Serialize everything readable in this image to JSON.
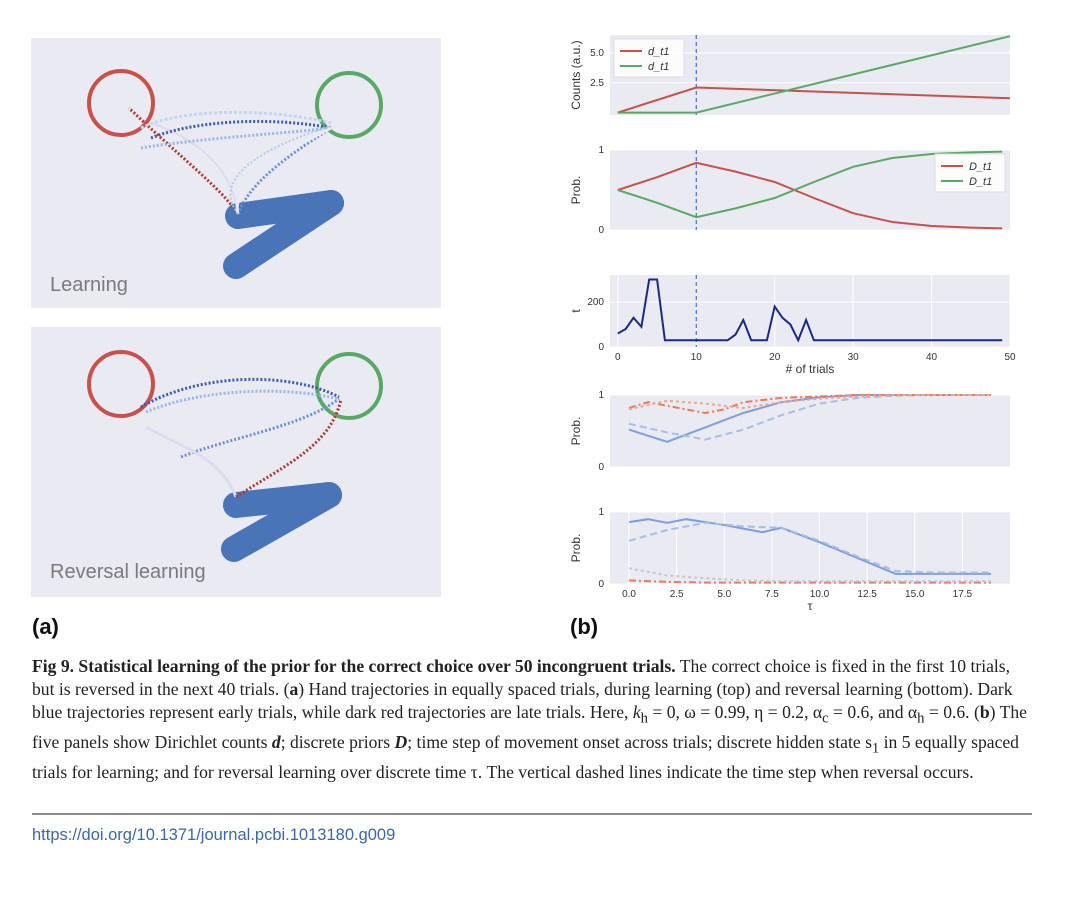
{
  "panel_a": {
    "label": "(a)",
    "top_scene_label": "Learning",
    "bottom_scene_label": "Reversal learning"
  },
  "panel_b": {
    "label": "(b)"
  },
  "colors": {
    "red": "#c9504b",
    "green": "#5aa865",
    "blue": "#4a74b8",
    "dark_blue": "#1a2a80",
    "orange": "#ea7a5c",
    "light_blue": "#7f9fd8",
    "dashed_line": "#3f6fd0",
    "panel_bg": "#eaeaf2"
  },
  "chart_data": [
    {
      "type": "line",
      "panel": "Dirichlet counts",
      "ylabel": "Counts (a.u.)",
      "yticks": [
        "2.5",
        "5.0"
      ],
      "xlim": [
        -1,
        50
      ],
      "ylim": [
        -0.2,
        6.5
      ],
      "legend": [
        "d_t1",
        "d_t1"
      ],
      "legend_position": "top-left",
      "series": [
        {
          "name": "d_t1 (red)",
          "color": "#c9504b",
          "x": [
            0,
            10,
            50
          ],
          "y": [
            0,
            2.1,
            1.2
          ]
        },
        {
          "name": "d_t1 (green)",
          "color": "#5aa865",
          "x": [
            0,
            10,
            50
          ],
          "y": [
            0,
            0,
            6.4
          ]
        }
      ],
      "vline": 10
    },
    {
      "type": "line",
      "panel": "Discrete priors",
      "ylabel": "Prob.",
      "yticks": [
        "0",
        "1"
      ],
      "xlim": [
        -1,
        50
      ],
      "ylim": [
        0,
        1
      ],
      "legend": [
        "D_t1",
        "D_t1"
      ],
      "legend_position": "top-right",
      "series": [
        {
          "name": "D_t1 (red)",
          "color": "#c9504b",
          "x": [
            0,
            5,
            10,
            15,
            20,
            25,
            30,
            35,
            40,
            45,
            49
          ],
          "y": [
            0.5,
            0.66,
            0.84,
            0.73,
            0.6,
            0.4,
            0.21,
            0.1,
            0.05,
            0.03,
            0.02
          ]
        },
        {
          "name": "D_t1 (green)",
          "color": "#5aa865",
          "x": [
            0,
            5,
            10,
            15,
            20,
            25,
            30,
            35,
            40,
            45,
            49
          ],
          "y": [
            0.5,
            0.34,
            0.16,
            0.27,
            0.4,
            0.6,
            0.79,
            0.9,
            0.95,
            0.97,
            0.98
          ]
        }
      ],
      "vline": 10
    },
    {
      "type": "line",
      "panel": "Time step of movement onset",
      "ylabel": "t",
      "xlabel": "# of trials",
      "yticks": [
        "0",
        "200"
      ],
      "xticks": [
        "0",
        "10",
        "20",
        "30",
        "40",
        "50"
      ],
      "xlim": [
        -1,
        50
      ],
      "ylim": [
        0,
        320
      ],
      "series": [
        {
          "name": "onset",
          "color": "#1a2a80",
          "x": [
            0,
            1,
            2,
            3,
            4,
            5,
            6,
            7,
            14,
            15,
            16,
            17,
            18,
            19,
            20,
            21,
            22,
            23,
            24,
            25,
            26,
            49
          ],
          "y": [
            60,
            80,
            130,
            90,
            300,
            300,
            30,
            30,
            30,
            55,
            120,
            30,
            30,
            30,
            180,
            130,
            100,
            30,
            120,
            30,
            30,
            30
          ]
        }
      ],
      "vline": 10
    },
    {
      "type": "line",
      "panel": "Hidden state, learning",
      "ylabel": "Prob.",
      "yticks": [
        "0",
        "1"
      ],
      "xlim": [
        -1,
        20
      ],
      "ylim": [
        0,
        1
      ],
      "series": [
        {
          "name": "solid blue",
          "color": "#7f9fd8",
          "x": [
            0,
            2,
            4,
            6,
            8,
            10,
            12,
            14,
            16,
            18,
            19
          ],
          "y": [
            0.52,
            0.35,
            0.55,
            0.75,
            0.9,
            0.97,
            1,
            1,
            1,
            1,
            1
          ]
        },
        {
          "name": "dashed blue",
          "color": "#a8bde6",
          "x": [
            0,
            2,
            4,
            6,
            8,
            10,
            12,
            14,
            16,
            18,
            19
          ],
          "y": [
            0.6,
            0.48,
            0.38,
            0.52,
            0.72,
            0.88,
            0.96,
            0.99,
            1,
            1,
            1
          ]
        },
        {
          "name": "orange dash-dot",
          "color": "#ea7a5c",
          "x": [
            0,
            1,
            2,
            3,
            4,
            5,
            6,
            8,
            10,
            12,
            14,
            16,
            18,
            19
          ],
          "y": [
            0.82,
            0.9,
            0.85,
            0.8,
            0.75,
            0.8,
            0.9,
            0.96,
            0.98,
            1,
            1,
            1,
            1,
            1
          ]
        },
        {
          "name": "salmon dashed",
          "color": "#f2a58a",
          "x": [
            0,
            2,
            4,
            6,
            8,
            10,
            12,
            14,
            16,
            18,
            19
          ],
          "y": [
            0.8,
            0.92,
            0.88,
            0.82,
            0.9,
            0.95,
            0.98,
            1,
            1,
            1,
            1
          ]
        }
      ]
    },
    {
      "type": "line",
      "panel": "Hidden state, reversal learning",
      "ylabel": "Prob.",
      "xlabel": "τ",
      "yticks": [
        "0",
        "1"
      ],
      "xticks": [
        "0.0",
        "2.5",
        "5.0",
        "7.5",
        "10.0",
        "12.5",
        "15.0",
        "17.5"
      ],
      "xlim": [
        -1,
        20
      ],
      "ylim": [
        0,
        1
      ],
      "series": [
        {
          "name": "solid blue",
          "color": "#7f9fd8",
          "x": [
            0,
            1,
            2,
            3,
            4,
            5,
            6,
            7,
            8,
            10,
            12,
            14,
            16,
            19
          ],
          "y": [
            0.86,
            0.9,
            0.85,
            0.9,
            0.86,
            0.82,
            0.77,
            0.72,
            0.78,
            0.58,
            0.36,
            0.14,
            0.14,
            0.14
          ]
        },
        {
          "name": "dashed blue",
          "color": "#a8bde6",
          "x": [
            0,
            2,
            4,
            6,
            8,
            10,
            12,
            14,
            16,
            19
          ],
          "y": [
            0.6,
            0.75,
            0.85,
            0.8,
            0.78,
            0.6,
            0.38,
            0.18,
            0.16,
            0.16
          ]
        },
        {
          "name": "orange dash-dot",
          "color": "#ea7a5c",
          "x": [
            0,
            2,
            4,
            6,
            8,
            10,
            12,
            14,
            16,
            19
          ],
          "y": [
            0.05,
            0.03,
            0.02,
            0.02,
            0.02,
            0.02,
            0.02,
            0.02,
            0.02,
            0.02
          ]
        },
        {
          "name": "grey dotted",
          "color": "#c8c8c8",
          "x": [
            0,
            2,
            4,
            6,
            8,
            10,
            12,
            14,
            16,
            19
          ],
          "y": [
            0.22,
            0.12,
            0.08,
            0.05,
            0.04,
            0.04,
            0.04,
            0.04,
            0.04,
            0.04
          ]
        }
      ]
    }
  ],
  "caption": {
    "bold": "Fig 9. Statistical learning of the prior for the correct choice over 50 incongruent trials.",
    "s1": " The correct choice is fixed in the first 10 trials, but is reversed in the next 40 trials. (",
    "a_bold": "a",
    "s2": ") Hand trajectories in equally spaced trials, during learning (top) and reversal learning (bottom). Dark blue trajectories represent early trials, while dark red trajectories are late trials. Here, ",
    "params": "k",
    "params_sub": "h",
    "s3": " = 0, ω = 0.99, η = 0.2, α",
    "alpha_c_sub": "c",
    "s4": " = 0.6, and α",
    "alpha_h_sub": "h",
    "s5": " = 0.6. (",
    "b_bold": "b",
    "s6": ") The five panels show Dirichlet counts ",
    "d_bold": "d",
    "s7": "; discrete priors ",
    "D_bold": "D",
    "s8": "; time step of movement onset across trials; discrete hidden state s",
    "s1_sub": "1",
    "s9": " in 5 equally spaced trials for learning; and for reversal learning over discrete time τ. The vertical dashed lines indicate the time step when reversal occurs."
  },
  "doi": "https://doi.org/10.1371/journal.pcbi.1013180.g009"
}
